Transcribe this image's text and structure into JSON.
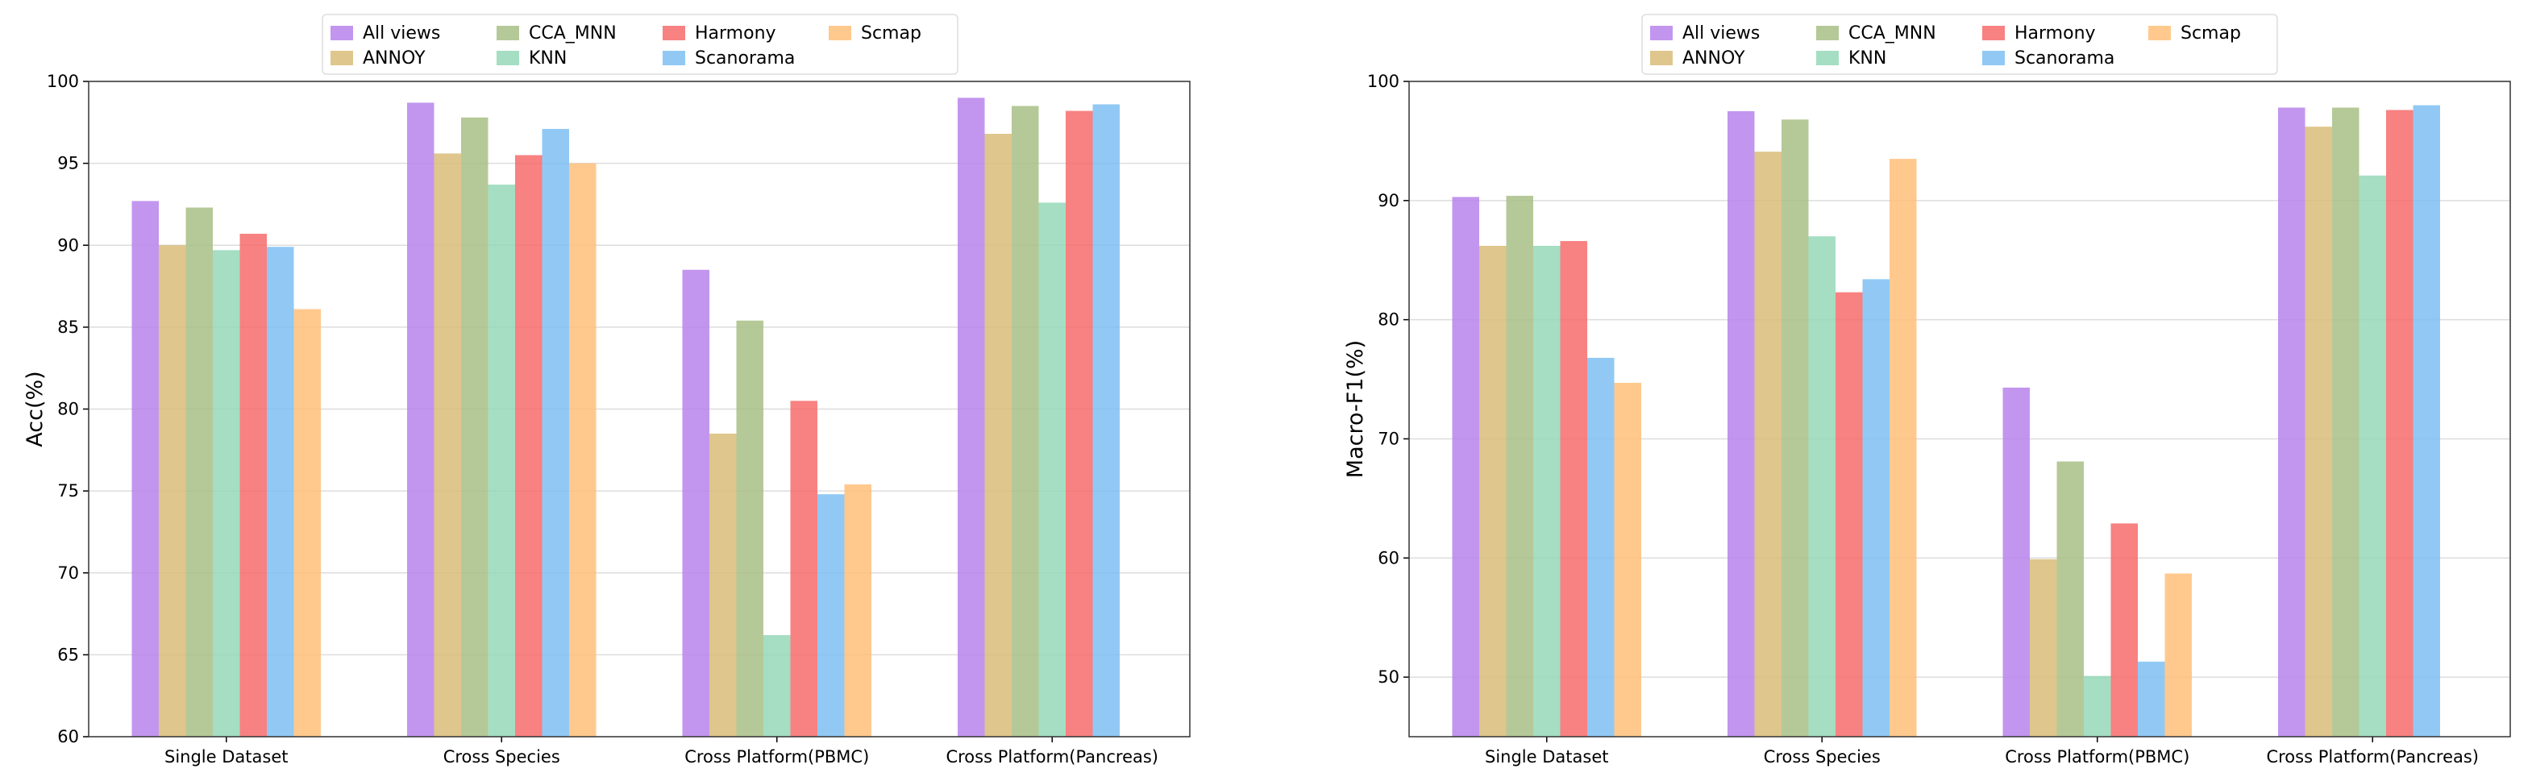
{
  "chart_data": [
    {
      "type": "bar",
      "ylabel": "Acc(%)",
      "xlabel": "",
      "ylim": [
        60,
        100
      ],
      "yticks": [
        60,
        65,
        70,
        75,
        80,
        85,
        90,
        95,
        100
      ],
      "grid": "horizontal",
      "legend_position": "top-left",
      "categories": [
        "Single Dataset",
        "Cross Species",
        "Cross Platform(PBMC)",
        "Cross Platform(Pancreas)"
      ],
      "series": [
        {
          "name": "All views",
          "color": "#b784eb",
          "values": [
            92.7,
            98.7,
            88.5,
            99.0
          ]
        },
        {
          "name": "ANNOY",
          "color": "#d9bc78",
          "values": [
            90.0,
            95.6,
            78.5,
            96.8
          ]
        },
        {
          "name": "CCA_MNN",
          "color": "#a8bf86",
          "values": [
            92.3,
            97.8,
            85.4,
            98.5
          ]
        },
        {
          "name": "KNN",
          "color": "#95d8b8",
          "values": [
            89.7,
            93.7,
            66.2,
            92.6
          ]
        },
        {
          "name": "Harmony",
          "color": "#f76b6b",
          "values": [
            90.7,
            95.5,
            80.5,
            98.2
          ]
        },
        {
          "name": "Scanorama",
          "color": "#7ec0f2",
          "values": [
            89.9,
            97.1,
            74.8,
            98.6
          ]
        },
        {
          "name": "Scmap",
          "color": "#ffc07a",
          "values": [
            86.1,
            95.0,
            75.4,
            null
          ]
        }
      ]
    },
    {
      "type": "bar",
      "ylabel": "Macro-F1(%)",
      "xlabel": "",
      "ylim": [
        45,
        100
      ],
      "yticks": [
        50,
        60,
        70,
        80,
        90,
        100
      ],
      "grid": "horizontal",
      "legend_position": "top-left",
      "categories": [
        "Single Dataset",
        "Cross Species",
        "Cross Platform(PBMC)",
        "Cross Platform(Pancreas)"
      ],
      "series": [
        {
          "name": "All views",
          "color": "#b784eb",
          "values": [
            90.3,
            97.5,
            74.3,
            97.8
          ]
        },
        {
          "name": "ANNOY",
          "color": "#d9bc78",
          "values": [
            86.2,
            94.1,
            59.9,
            96.2
          ]
        },
        {
          "name": "CCA_MNN",
          "color": "#a8bf86",
          "values": [
            90.4,
            96.8,
            68.1,
            97.8
          ]
        },
        {
          "name": "KNN",
          "color": "#95d8b8",
          "values": [
            86.2,
            87.0,
            50.1,
            92.1
          ]
        },
        {
          "name": "Harmony",
          "color": "#f76b6b",
          "values": [
            86.6,
            82.3,
            62.9,
            97.6
          ]
        },
        {
          "name": "Scanorama",
          "color": "#7ec0f2",
          "values": [
            76.8,
            83.4,
            51.3,
            98.0
          ]
        },
        {
          "name": "Scmap",
          "color": "#ffc07a",
          "values": [
            74.7,
            93.5,
            58.7,
            null
          ]
        }
      ]
    }
  ]
}
